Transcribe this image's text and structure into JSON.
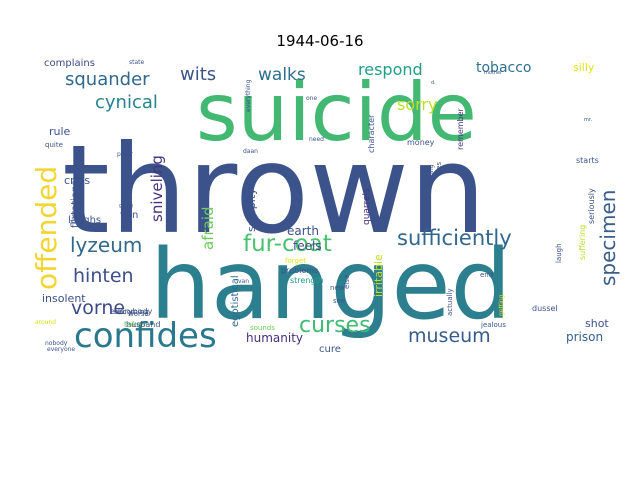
{
  "chart_data": {
    "type": "wordcloud",
    "title": "1944-06-16",
    "palette": "viridis",
    "words": [
      {
        "text": "thrown",
        "weight": 100,
        "color": "#3b528b"
      },
      {
        "text": "hanged",
        "weight": 88,
        "color": "#2c7f8e"
      },
      {
        "text": "suicide",
        "weight": 80,
        "color": "#42b873"
      },
      {
        "text": "confides",
        "weight": 40,
        "color": "#2a788e"
      },
      {
        "text": "offended",
        "weight": 34,
        "color": "#f2d531"
      },
      {
        "text": "fur-coat",
        "weight": 26,
        "color": "#4ac16d"
      },
      {
        "text": "curses",
        "weight": 24,
        "color": "#3fbc73"
      },
      {
        "text": "sufficiently",
        "weight": 23,
        "color": "#31668d"
      },
      {
        "text": "specimen",
        "weight": 22,
        "color": "#3b5d8c"
      },
      {
        "text": "lyzeum",
        "weight": 22,
        "color": "#31688e"
      },
      {
        "text": "museum",
        "weight": 21,
        "color": "#365c8d"
      },
      {
        "text": "vorne",
        "weight": 20,
        "color": "#3e4a89"
      },
      {
        "text": "hinten",
        "weight": 20,
        "color": "#3c4f8a"
      },
      {
        "text": "squander",
        "weight": 19,
        "color": "#31688e"
      },
      {
        "text": "cynical",
        "weight": 19,
        "color": "#26828e"
      },
      {
        "text": "wits",
        "weight": 19,
        "color": "#3b528b"
      },
      {
        "text": "walks",
        "weight": 18,
        "color": "#2e6f8e"
      },
      {
        "text": "respond",
        "weight": 18,
        "color": "#1f9e89"
      },
      {
        "text": "tobacco",
        "weight": 16,
        "color": "#2d708e"
      },
      {
        "text": "sorry",
        "weight": 17,
        "color": "#bddf26"
      },
      {
        "text": "afraid",
        "weight": 17,
        "color": "#6ccd5a"
      },
      {
        "text": "sniveling",
        "weight": 16,
        "color": "#46337e"
      },
      {
        "text": "egotistical",
        "weight": 11,
        "color": "#2f6c8e"
      },
      {
        "text": "self-pity",
        "weight": 12,
        "color": "#3b528b"
      },
      {
        "text": "feels",
        "weight": 13,
        "color": "#3e4989"
      },
      {
        "text": "earth",
        "weight": 12,
        "color": "#3b528b"
      },
      {
        "text": "humanity",
        "weight": 12,
        "color": "#46307e"
      },
      {
        "text": "irritable",
        "weight": 11,
        "color": "#c2df23"
      },
      {
        "text": "prison",
        "weight": 12,
        "color": "#34608d"
      },
      {
        "text": "shot",
        "weight": 12,
        "color": "#3b528b"
      },
      {
        "text": "insolent",
        "weight": 12,
        "color": "#3c4f8a"
      },
      {
        "text": "complains",
        "weight": 11,
        "color": "#3e4a89"
      },
      {
        "text": "silly",
        "weight": 11,
        "color": "#e5e419"
      },
      {
        "text": "rule",
        "weight": 11,
        "color": "#3b528b"
      },
      {
        "text": "cries",
        "weight": 11,
        "color": "#3b528b"
      },
      {
        "text": "flirtations",
        "weight": 10,
        "color": "#3b528b"
      },
      {
        "text": "laughs",
        "weight": 10,
        "color": "#3b528b"
      },
      {
        "text": "von",
        "weight": 10,
        "color": "#3b528b"
      },
      {
        "text": "cure",
        "weight": 10,
        "color": "#3b528b"
      },
      {
        "text": "everybody",
        "weight": 9,
        "color": "#3b528b"
      },
      {
        "text": "takes",
        "weight": 9,
        "color": "#6ccd5a"
      },
      {
        "text": "husband",
        "weight": 8,
        "color": "#3b528b"
      },
      {
        "text": "becoming",
        "weight": 8,
        "color": "#3b528b"
      },
      {
        "text": "quarrels",
        "weight": 9,
        "color": "#46337e"
      },
      {
        "text": "problems",
        "weight": 8,
        "color": "#3b528b"
      },
      {
        "text": "strength",
        "weight": 8,
        "color": "#1f9e89"
      },
      {
        "text": "character",
        "weight": 8,
        "color": "#3b528b"
      },
      {
        "text": "money",
        "weight": 8,
        "color": "#3b528b"
      },
      {
        "text": "remember",
        "weight": 8,
        "color": "#46337e"
      },
      {
        "text": "seriously",
        "weight": 8,
        "color": "#3b528b"
      },
      {
        "text": "suffering",
        "weight": 8,
        "color": "#b5de2b"
      },
      {
        "text": "starts",
        "weight": 8,
        "color": "#3b528b"
      },
      {
        "text": "dussel",
        "weight": 8,
        "color": "#3b528b"
      },
      {
        "text": "laugh",
        "weight": 7,
        "color": "#3b528b"
      },
      {
        "text": "jealous",
        "weight": 7,
        "color": "#3b528b"
      },
      {
        "text": "end",
        "weight": 7,
        "color": "#3b528b"
      },
      {
        "text": "actually",
        "weight": 7,
        "color": "#3b528b"
      },
      {
        "text": "yes",
        "weight": 7,
        "color": "#3b528b"
      },
      {
        "text": "new",
        "weight": 7,
        "color": "#3b528b"
      },
      {
        "text": "see",
        "weight": 7,
        "color": "#3b528b"
      },
      {
        "text": "else",
        "weight": 7,
        "color": "#3b528b"
      },
      {
        "text": "forget",
        "weight": 7,
        "color": "#dde318"
      },
      {
        "text": "sounds",
        "weight": 7,
        "color": "#6ccd5a"
      },
      {
        "text": "getting",
        "weight": 6,
        "color": "#dde318"
      },
      {
        "text": "van",
        "weight": 6,
        "color": "#3b528b"
      },
      {
        "text": "daan",
        "weight": 6,
        "color": "#3b528b"
      },
      {
        "text": "one",
        "weight": 6,
        "color": "#3b528b"
      },
      {
        "text": "need",
        "weight": 6,
        "color": "#3b528b"
      },
      {
        "text": "talking",
        "weight": 6,
        "color": "#3b528b"
      },
      {
        "text": "everything",
        "weight": 6,
        "color": "#3b528b"
      },
      {
        "text": "state",
        "weight": 6,
        "color": "#3b528b"
      },
      {
        "text": "mother",
        "weight": 6,
        "color": "#3b528b"
      },
      {
        "text": "worse",
        "weight": 7,
        "color": "#3b528b"
      },
      {
        "text": "quite",
        "weight": 7,
        "color": "#3b528b"
      },
      {
        "text": "peter",
        "weight": 6,
        "color": "#3b528b"
      },
      {
        "text": "nobody",
        "weight": 6,
        "color": "#3b528b"
      },
      {
        "text": "around",
        "weight": 6,
        "color": "#dde318"
      },
      {
        "text": "everyone",
        "weight": 6,
        "color": "#3b528b"
      },
      {
        "text": "going",
        "weight": 5,
        "color": "#3b528b"
      },
      {
        "text": "mr.",
        "weight": 5,
        "color": "#3b528b"
      },
      {
        "text": "d.",
        "weight": 5,
        "color": "#3b528b"
      }
    ]
  }
}
